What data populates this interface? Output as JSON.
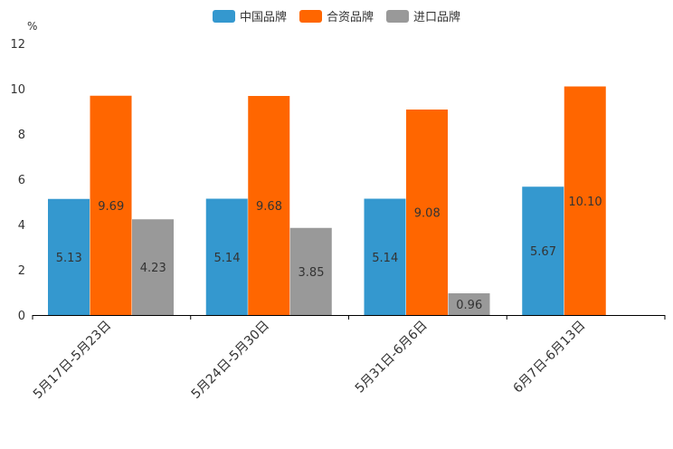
{
  "chart_data": {
    "type": "bar",
    "unit": "%",
    "categories": [
      "5月17日-5月23日",
      "5月24日-5月30日",
      "5月31日-6月6日",
      "6月7日-6月13日"
    ],
    "series": [
      {
        "name": "中国品牌",
        "color": "#3498cf",
        "values": [
          5.13,
          5.14,
          5.14,
          5.67
        ],
        "labels": [
          "5.13",
          "5.14",
          "5.14",
          "5.67"
        ]
      },
      {
        "name": "合资品牌",
        "color": "#ff6600",
        "values": [
          9.69,
          9.68,
          9.08,
          10.1
        ],
        "labels": [
          "9.69",
          "9.68",
          "9.08",
          "10.10"
        ]
      },
      {
        "name": "进口品牌",
        "color": "#999999",
        "values": [
          4.23,
          3.85,
          0.96,
          null
        ],
        "labels": [
          "4.23",
          "3.85",
          "0.96",
          ""
        ]
      }
    ],
    "ylim": [
      0,
      12
    ],
    "yticks": [
      "0",
      "2",
      "4",
      "6",
      "8",
      "10",
      "12"
    ],
    "legend_position": "top-center"
  }
}
